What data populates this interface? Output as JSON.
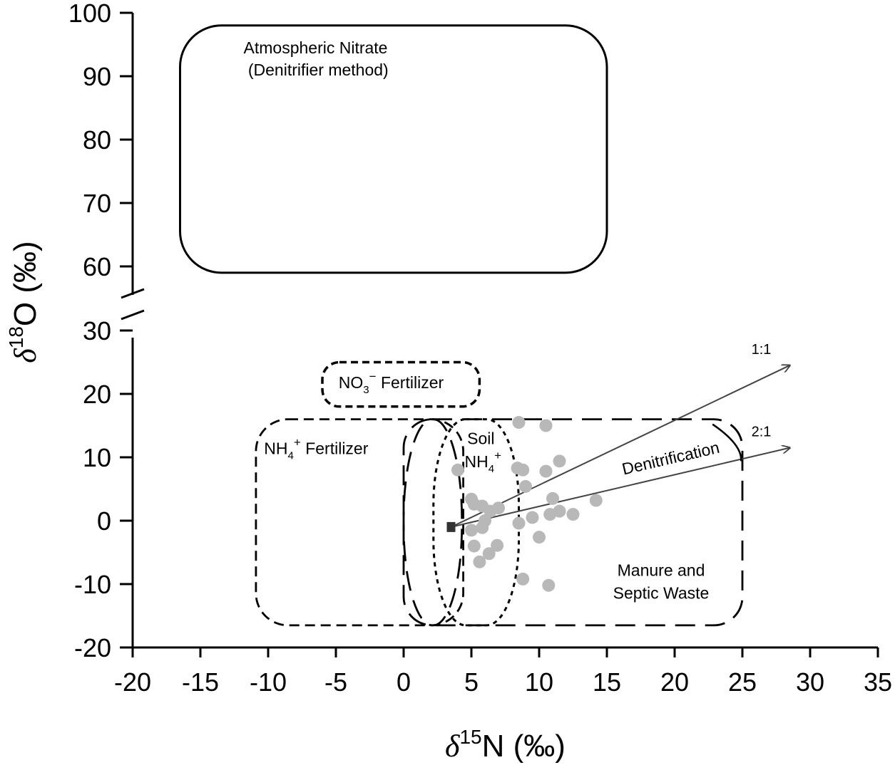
{
  "chart_data": {
    "type": "scatter",
    "title": "",
    "xlabel": {
      "symbol": "δ",
      "sup": "15",
      "rest": "N (‰)"
    },
    "ylabel": {
      "symbol": "δ",
      "sup": "18",
      "rest": "O (‰)"
    },
    "xlim": [
      -20,
      35
    ],
    "ylim_lower": [
      -20,
      30
    ],
    "ylim_upper": [
      60,
      100
    ],
    "x_ticks": [
      -20,
      -15,
      -10,
      -5,
      0,
      5,
      10,
      15,
      20,
      25,
      30,
      35
    ],
    "x_tick_labels": [
      "-20",
      "-15",
      "-10",
      "-5",
      "0",
      "5",
      "10",
      "15",
      "20",
      "25",
      "30",
      "35"
    ],
    "y_ticks": [
      -20,
      -10,
      0,
      10,
      20,
      30,
      60,
      70,
      80,
      90,
      100
    ],
    "y_tick_labels": [
      "-20",
      "-10",
      "0",
      "10",
      "20",
      "30",
      "60",
      "70",
      "80",
      "90",
      "100"
    ],
    "axis_break": "between 30 and 60",
    "grid": false,
    "regions": [
      {
        "name": "atmospheric-nitrate",
        "label_lines": [
          "Atmospheric Nitrate",
          "(Denitrifier method)"
        ],
        "x_range": [
          -16.5,
          15
        ],
        "y_range": [
          59,
          98
        ],
        "style": "solid"
      },
      {
        "name": "no3-fertilizer",
        "label": {
          "main": "NO",
          "sub": "3",
          "sup": "−",
          "rest": "  Fertilizer"
        },
        "x_range": [
          -6,
          5.6
        ],
        "y_range": [
          18,
          25
        ],
        "style": "dotted"
      },
      {
        "name": "nh4-fertilizer",
        "label": {
          "main": "NH",
          "sub": "4",
          "sup": "+",
          "rest": " Fertilizer"
        },
        "x_range": [
          -10.9,
          4.4
        ],
        "y_range": [
          -16.5,
          16
        ],
        "style": "dashed"
      },
      {
        "name": "soil-nh4",
        "label_lines": [
          "Soil",
          "NH"
        ],
        "label_sub": "4",
        "label_sup": "+",
        "x_range": [
          0,
          8.5
        ],
        "y_range": [
          -16.5,
          16
        ],
        "style": "dotted"
      },
      {
        "name": "manure-septic",
        "label_lines": [
          "Manure and",
          "Septic Waste"
        ],
        "x_range": [
          0,
          25
        ],
        "y_range": [
          -16.5,
          16
        ],
        "style": "long-dashed"
      }
    ],
    "vectors": [
      {
        "label": "1:1",
        "from": [
          3.5,
          -1
        ],
        "to": [
          28.5,
          24.5
        ]
      },
      {
        "label": "2:1",
        "from": [
          3.5,
          -1
        ],
        "to": [
          28.5,
          11.5
        ]
      }
    ],
    "denitrification_label": "Denitrification",
    "origin_marker": {
      "x": 3.5,
      "y": -1
    },
    "points": [
      [
        8.5,
        15.5
      ],
      [
        10.5,
        15
      ],
      [
        4,
        8
      ],
      [
        8.4,
        8.3
      ],
      [
        8.8,
        8
      ],
      [
        10.5,
        7.8
      ],
      [
        11.5,
        9.4
      ],
      [
        9,
        5.4
      ],
      [
        5,
        3.4
      ],
      [
        5.2,
        2.6
      ],
      [
        5.8,
        2.3
      ],
      [
        7,
        2
      ],
      [
        6.4,
        1.5
      ],
      [
        11,
        3.5
      ],
      [
        14.2,
        3.2
      ],
      [
        11.5,
        1.5
      ],
      [
        10.8,
        1
      ],
      [
        12.5,
        1
      ],
      [
        9.5,
        0.5
      ],
      [
        6,
        0
      ],
      [
        8.5,
        -0.4
      ],
      [
        5,
        -1.5
      ],
      [
        5.8,
        -1.1
      ],
      [
        10,
        -2.6
      ],
      [
        5.2,
        -4
      ],
      [
        6.9,
        -3.9
      ],
      [
        6.3,
        -5.2
      ],
      [
        5.6,
        -6.5
      ],
      [
        8.8,
        -9.2
      ],
      [
        10.7,
        -10.2
      ]
    ],
    "colors": {
      "points": "#b8b8b8",
      "marker": "#333333",
      "vectors": "#444444",
      "axes": "#000000"
    }
  }
}
